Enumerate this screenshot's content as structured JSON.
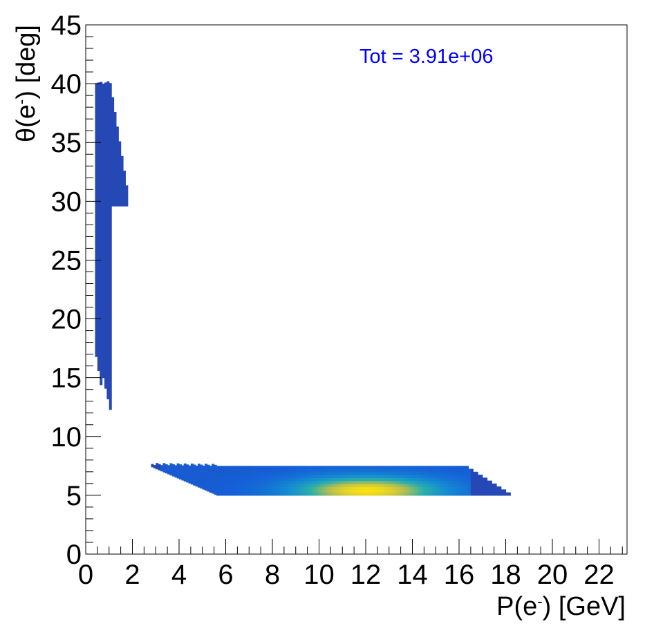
{
  "chart_data": {
    "type": "heatmap",
    "xlabel": "P(e",
    "xlabel_sup": "-",
    "xlabel_end": ") [GeV]",
    "ylabel": "θ(e",
    "ylabel_sup": "-",
    "ylabel_end": ") [deg]",
    "xlim": [
      0,
      23.2
    ],
    "ylim": [
      0,
      45
    ],
    "x_ticks": [
      0,
      2,
      4,
      6,
      8,
      10,
      12,
      14,
      16,
      18,
      20,
      22
    ],
    "x_tick_labels": [
      "0",
      "2",
      "4",
      "6",
      "8",
      "10",
      "12",
      "14",
      "16",
      "18",
      "20",
      "22"
    ],
    "y_ticks": [
      0,
      5,
      10,
      15,
      20,
      25,
      30,
      35,
      40,
      45
    ],
    "y_tick_labels": [
      "0",
      "5",
      "10",
      "15",
      "20",
      "25",
      "30",
      "35",
      "40",
      "45"
    ],
    "annotation": "Tot = 3.91e+06",
    "annotation_color": "#0000ff",
    "colors": {
      "low": "#2b3fa8",
      "mid": "#1560d8",
      "teal": "#2aa0b8",
      "high": "#fde010"
    },
    "regions": [
      {
        "name": "large-angle-band",
        "x_range": [
          0.35,
          1.8
        ],
        "y_range": [
          12,
          40
        ],
        "peak_x": 0.6,
        "peak_y": 35,
        "peak_intensity": 0.05
      },
      {
        "name": "small-angle-band",
        "x_range": [
          2.7,
          18.2
        ],
        "y_range": [
          5,
          7.5
        ],
        "peak_x": 12,
        "peak_y": 5.3,
        "peak_intensity": 1.0
      }
    ]
  }
}
